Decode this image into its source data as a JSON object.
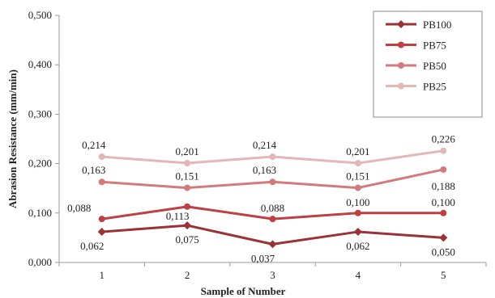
{
  "chart_data": {
    "type": "line",
    "title": "",
    "xlabel": "Sample of Number",
    "ylabel": "Abrasion Resistance (mm/min)",
    "x": [
      "1",
      "2",
      "3",
      "4",
      "5"
    ],
    "ylim": [
      0,
      0.5
    ],
    "y_ticks": [
      "0,000",
      "0,100",
      "0,200",
      "0,300",
      "0,400",
      "0,500"
    ],
    "grid": false,
    "legend_position": "top-right",
    "series": [
      {
        "name": "PB100",
        "color": "#9b3336",
        "marker": "diamond",
        "values": [
          0.062,
          0.075,
          0.037,
          0.062,
          0.05
        ],
        "labels": [
          "0,062",
          "0,075",
          "0,037",
          "0,062",
          "0,050"
        ]
      },
      {
        "name": "PB75",
        "color": "#bf3f45",
        "marker": "circle",
        "values": [
          0.088,
          0.113,
          0.088,
          0.1,
          0.1
        ],
        "labels": [
          "0,088",
          "0,113",
          "0,088",
          "0,100",
          "0,100"
        ]
      },
      {
        "name": "PB50",
        "color": "#d27a7c",
        "marker": "circle",
        "values": [
          0.163,
          0.151,
          0.163,
          0.151,
          0.188
        ],
        "labels": [
          "0,163",
          "0,151",
          "0,163",
          "0,151",
          "0,188"
        ]
      },
      {
        "name": "PB25",
        "color": "#e5b6b6",
        "marker": "circle",
        "values": [
          0.214,
          0.201,
          0.214,
          0.201,
          0.226
        ],
        "labels": [
          "0,214",
          "0,201",
          "0,214",
          "0,201",
          "0,226"
        ]
      }
    ]
  }
}
